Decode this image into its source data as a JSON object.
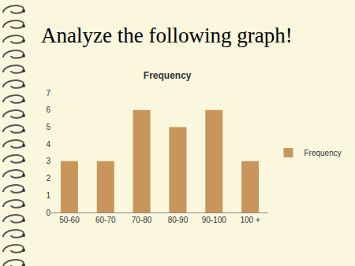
{
  "slide": {
    "heading": "Analyze the following graph!"
  },
  "chart_data": {
    "type": "bar",
    "title": "Frequency",
    "categories": [
      "50-60",
      "60-70",
      "70-80",
      "80-90",
      "90-100",
      "100 +"
    ],
    "series": [
      {
        "name": "Frequency",
        "color": "#c8965a",
        "values": [
          3,
          3,
          6,
          5,
          6,
          3
        ]
      }
    ],
    "ylim": [
      0,
      7
    ],
    "yticks": [
      0,
      1,
      2,
      3,
      4,
      5,
      6,
      7
    ],
    "grid": false,
    "legend": "right"
  }
}
